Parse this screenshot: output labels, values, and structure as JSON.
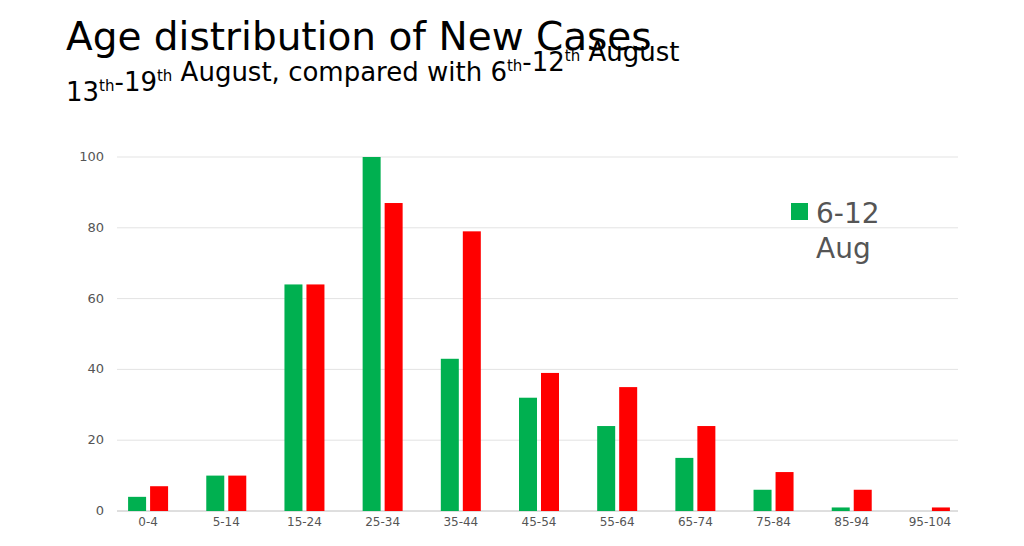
{
  "chart_data": {
    "type": "bar",
    "title": "Age distribution of New Cases",
    "subtitle": "13th-19th August, compared with 6th-12th August",
    "categories": [
      "0-4",
      "5-14",
      "15-24",
      "25-34",
      "35-44",
      "45-54",
      "55-64",
      "65-74",
      "75-84",
      "85-94",
      "95-104"
    ],
    "series": [
      {
        "name": "6-12 Aug",
        "color": "#00b050",
        "values": [
          4,
          10,
          64,
          100,
          43,
          32,
          24,
          15,
          6,
          1,
          0
        ]
      },
      {
        "color": "#ff0000",
        "values": [
          7,
          10,
          64,
          87,
          79,
          39,
          35,
          24,
          11,
          6,
          1
        ]
      }
    ],
    "ylim": [
      0,
      100
    ],
    "yticks": [
      0,
      20,
      40,
      60,
      80,
      100
    ],
    "grid": true,
    "legend": "upper right"
  }
}
